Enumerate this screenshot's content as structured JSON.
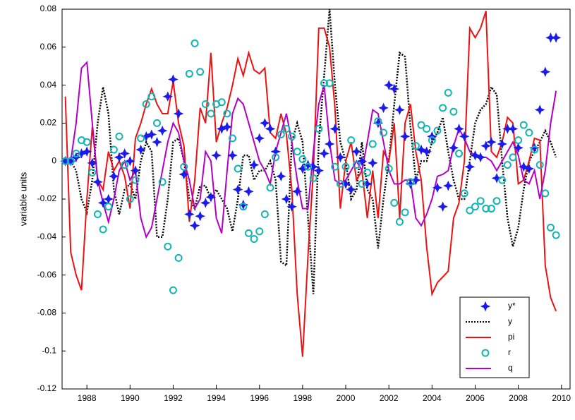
{
  "chart_data": {
    "type": "line",
    "ylabel": "variable units",
    "xlim": [
      1986.85,
      2010.4
    ],
    "xticks": [
      1988,
      1990,
      1992,
      1994,
      1996,
      1998,
      2000,
      2002,
      2004,
      2006,
      2008,
      2010
    ],
    "ylim": [
      -0.12,
      0.08
    ],
    "yticks": [
      0.08,
      0.06,
      0.04,
      0.02,
      0,
      -0.02,
      -0.04,
      -0.06,
      -0.08,
      -0.1,
      -0.12
    ],
    "legend": "lower right",
    "x": [
      1987,
      1987.25,
      1987.5,
      1987.75,
      1988,
      1988.25,
      1988.5,
      1988.75,
      1989,
      1989.25,
      1989.5,
      1989.75,
      1990,
      1990.25,
      1990.5,
      1990.75,
      1991,
      1991.25,
      1991.5,
      1991.75,
      1992,
      1992.25,
      1992.5,
      1992.75,
      1993,
      1993.25,
      1993.5,
      1993.75,
      1994,
      1994.25,
      1994.5,
      1994.75,
      1995,
      1995.25,
      1995.5,
      1995.75,
      1996,
      1996.25,
      1996.5,
      1996.75,
      1997,
      1997.25,
      1997.5,
      1997.75,
      1998,
      1998.25,
      1998.5,
      1998.75,
      1999,
      1999.25,
      1999.5,
      1999.75,
      2000,
      2000.25,
      2000.5,
      2000.75,
      2001,
      2001.25,
      2001.5,
      2001.75,
      2002,
      2002.25,
      2002.5,
      2002.75,
      2003,
      2003.25,
      2003.5,
      2003.75,
      2004,
      2004.25,
      2004.5,
      2004.75,
      2005,
      2005.25,
      2005.5,
      2005.75,
      2006,
      2006.25,
      2006.5,
      2006.75,
      2007,
      2007.25,
      2007.5,
      2007.75,
      2008,
      2008.25,
      2008.5,
      2008.75,
      2009,
      2009.25,
      2009.5,
      2009.75
    ],
    "series": [
      {
        "name": "y*",
        "color": "#1a1aee",
        "marker": "star",
        "values": [
          0,
          0,
          0.002,
          0.004,
          0.005,
          -0.001,
          -0.011,
          -0.022,
          -0.02,
          -0.008,
          0.002,
          0.004,
          0,
          -0.005,
          0.006,
          0.013,
          0.014,
          0.01,
          0.016,
          0.034,
          0.043,
          0.025,
          -0.007,
          -0.028,
          -0.034,
          -0.029,
          -0.022,
          -0.019,
          0.003,
          0.017,
          0.018,
          0.003,
          -0.015,
          -0.023,
          -0.016,
          -0.002,
          0.012,
          0.02,
          0.017,
          0.005,
          -0.008,
          -0.02,
          -0.024,
          -0.016,
          -0.004,
          -0.002,
          -0.003,
          -0.005,
          0.004,
          0.009,
          0.017,
          0.002,
          -0.012,
          -0.015,
          0.005,
          0,
          -0.012,
          -0.001,
          0.02,
          0.028,
          0.04,
          0.038,
          0.027,
          0.013,
          -0.012,
          -0.01,
          0.006,
          0.005,
          0.013,
          -0.014,
          -0.024,
          -0.013,
          0.007,
          0.017,
          0.013,
          -0.003,
          0.003,
          0.002,
          0.008,
          0.01,
          -0.009,
          0.009,
          0.017,
          0.017,
          0.007,
          -0.003,
          -0.004,
          0.007,
          0.027,
          0.047,
          0.065,
          0.065
        ]
      },
      {
        "name": "y",
        "color": "#000000",
        "line": "dotted",
        "values": [
          0,
          0,
          -0.005,
          -0.02,
          -0.027,
          -0.01,
          0.02,
          0.039,
          0.025,
          -0.015,
          -0.028,
          -0.015,
          -0.012,
          -0.02,
          0,
          0.01,
          0.005,
          -0.04,
          -0.04,
          -0.02,
          0.01,
          0.012,
          0,
          -0.02,
          -0.025,
          -0.013,
          -0.013,
          -0.02,
          -0.015,
          -0.02,
          -0.025,
          -0.037,
          -0.02,
          0.003,
          0.003,
          -0.01,
          -0.005,
          -0.005,
          0,
          -0.01,
          -0.053,
          -0.055,
          0.01,
          0.02,
          0.01,
          -0.03,
          -0.07,
          0.01,
          0.045,
          0.08,
          0.04,
          0.01,
          0,
          -0.02,
          -0.015,
          0.01,
          -0.015,
          -0.02,
          -0.046,
          -0.02,
          0,
          0.03,
          0.057,
          0.055,
          0.018,
          -0.01,
          0,
          0,
          0.01,
          0.015,
          0.023,
          0.005,
          -0.01,
          -0.02,
          -0.02,
          0,
          0.02,
          0.027,
          0.03,
          0.039,
          0.035,
          0,
          -0.03,
          -0.045,
          -0.035,
          -0.015,
          0,
          0.005,
          0.01,
          0.016,
          0.01,
          0.002
        ]
      },
      {
        "name": "pi",
        "color": "#ee1111",
        "line": "solid",
        "values": [
          0.034,
          -0.048,
          -0.06,
          -0.068,
          -0.02,
          0.018,
          -0.01,
          -0.015,
          0.005,
          -0.005,
          0,
          -0.008,
          -0.025,
          0.012,
          0.02,
          0.03,
          0.038,
          0.03,
          0.025,
          0.025,
          0.042,
          0.02,
          0.008,
          -0.032,
          -0.01,
          0.028,
          0.02,
          0.057,
          0.01,
          0.02,
          0.028,
          0.04,
          0.054,
          0.045,
          0.057,
          0.048,
          0.046,
          0.049,
          0.015,
          0.012,
          0.025,
          0.014,
          -0.015,
          -0.07,
          -0.103,
          -0.05,
          -0.005,
          0.07,
          0.07,
          0.06,
          0.028,
          -0.025,
          0,
          0.01,
          -0.01,
          -0.005,
          -0.03,
          -0.005,
          -0.03,
          0.005,
          0,
          0.02,
          -0.03,
          0.02,
          0.03,
          0.005,
          -0.01,
          -0.045,
          -0.07,
          -0.064,
          -0.061,
          -0.058,
          -0.03,
          -0.022,
          0,
          0.07,
          0.065,
          0.07,
          0.079,
          0.005,
          0.002,
          0.01,
          0.023,
          0.02,
          -0.012,
          -0.01,
          0,
          0.012,
          0.011,
          -0.055,
          -0.072,
          -0.079
        ]
      },
      {
        "name": "r",
        "color": "#11b5b5",
        "marker": "circle",
        "values": [
          0,
          0,
          0.004,
          0.011,
          0.01,
          -0.006,
          -0.028,
          -0.036,
          -0.024,
          0.006,
          0.013,
          -0.002,
          -0.02,
          -0.01,
          0.012,
          0.03,
          0.034,
          0.02,
          -0.011,
          -0.045,
          -0.068,
          -0.051,
          -0.003,
          0.046,
          0.062,
          0.047,
          0.03,
          0.025,
          0.03,
          0.031,
          0.025,
          0.012,
          -0.004,
          -0.024,
          -0.038,
          -0.041,
          -0.037,
          -0.028,
          -0.014,
          0.002,
          0.014,
          0.017,
          0.013,
          0.005,
          0.001,
          -0.003,
          -0.009,
          0.017,
          0.041,
          0.041,
          -0.003,
          -0.012,
          -0.003,
          0.011,
          -0.002,
          -0.012,
          -0.006,
          0.009,
          0.021,
          0.015,
          -0.004,
          -0.022,
          -0.032,
          -0.027,
          -0.011,
          0.008,
          0.019,
          0.017,
          0.011,
          0.016,
          0.028,
          0.036,
          0.026,
          0.004,
          -0.017,
          -0.026,
          -0.024,
          -0.021,
          -0.025,
          -0.025,
          -0.021,
          -0.01,
          -0.002,
          0.002,
          0.011,
          0.019,
          0.015,
          0.006,
          -0.002,
          -0.017,
          -0.035,
          -0.039
        ]
      },
      {
        "name": "q",
        "color": "#b400c4",
        "line": "solid",
        "values": [
          0,
          0,
          0.02,
          0.049,
          0.052,
          0.02,
          -0.01,
          -0.022,
          -0.032,
          -0.02,
          -0.005,
          0,
          -0.01,
          -0.005,
          -0.03,
          -0.04,
          -0.035,
          -0.02,
          -0.005,
          0.01,
          0.02,
          0.015,
          0,
          -0.01,
          -0.025,
          -0.02,
          0.005,
          0,
          -0.03,
          -0.038,
          -0.005,
          0.025,
          0.033,
          0.03,
          0.02,
          0.01,
          0,
          -0.005,
          -0.012,
          0.005,
          0.015,
          0.025,
          0.01,
          -0.01,
          -0.025,
          -0.025,
          0.005,
          0.03,
          0.04,
          0.01,
          -0.01,
          -0.012,
          -0.01,
          -0.005,
          0,
          -0.005,
          0.01,
          0.027,
          0.025,
          0.01,
          -0.005,
          -0.012,
          -0.012,
          -0.01,
          -0.01,
          -0.03,
          -0.034,
          -0.028,
          -0.02,
          -0.008,
          -0.007,
          -0.005,
          0.008,
          0.017,
          0.012,
          0.005,
          0.003,
          0.002,
          0.002,
          0,
          -0.005,
          0,
          0.005,
          0.01,
          0.003,
          -0.01,
          -0.012,
          -0.005,
          -0.02,
          -0.005,
          0.02,
          0.037
        ]
      }
    ]
  }
}
